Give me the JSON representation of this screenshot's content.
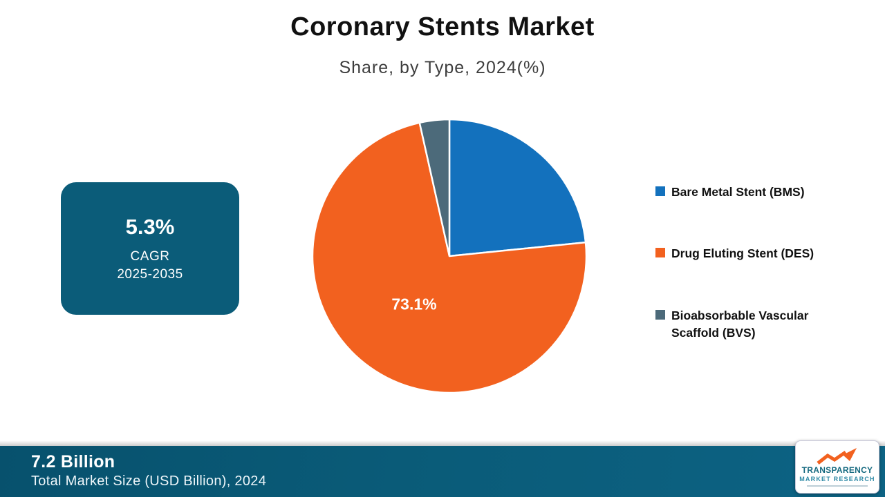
{
  "header": {
    "title": "Coronary Stents Market",
    "subtitle": "Share, by Type, 2024(%)"
  },
  "cagr_card": {
    "value": "5.3%",
    "label": "CAGR",
    "period": "2025-2035"
  },
  "chart_data": {
    "type": "pie",
    "title": "Coronary Stents Market Share, by Type, 2024(%)",
    "start_angle_deg": 0,
    "legend_position": "right",
    "slices": [
      {
        "label": "Bare Metal Stent (BMS)",
        "value": 23.4,
        "color": "#1371bd",
        "data_label": ""
      },
      {
        "label": "Drug Eluting Stent (DES)",
        "value": 73.1,
        "color": "#f2611f",
        "data_label": "73.1%"
      },
      {
        "label": "Bioabsorbable Vascular Scaffold (BVS)",
        "value": 3.5,
        "color": "#4c6a7a",
        "data_label": ""
      }
    ]
  },
  "footer": {
    "value": "7.2 Billion",
    "label": "Total Market Size (USD Billion), 2024"
  },
  "logo": {
    "line1": "TRANSPARENCY",
    "line2": "MARKET RESEARCH"
  },
  "colors": {
    "card_teal": "#0b5c79",
    "strip_teal": "#0a5b78",
    "logo_orange": "#f2611f"
  }
}
